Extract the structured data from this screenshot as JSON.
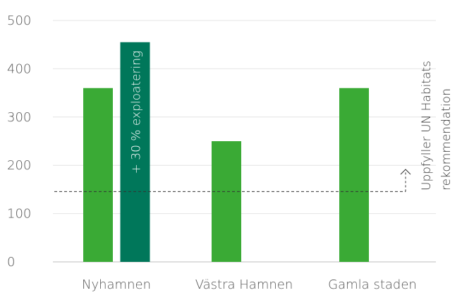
{
  "chart_data": {
    "type": "bar",
    "categories": [
      "Nyhamnen",
      "Västra Hamnen",
      "Gamla staden"
    ],
    "series": [
      {
        "values": [
          360,
          250,
          360
        ],
        "color": "#3aaa35"
      },
      {
        "values": [
          455,
          null,
          null
        ],
        "color": "#00775a",
        "label": "+ 30 % exploatering"
      }
    ],
    "ylim": [
      0,
      500
    ],
    "yticks": [
      0,
      100,
      200,
      300,
      400,
      500
    ],
    "grid": true,
    "reference_line": {
      "value": 145,
      "style": "dashed",
      "label_lines": [
        "Uppfyller UN Habitats",
        "rekommendation"
      ]
    }
  }
}
